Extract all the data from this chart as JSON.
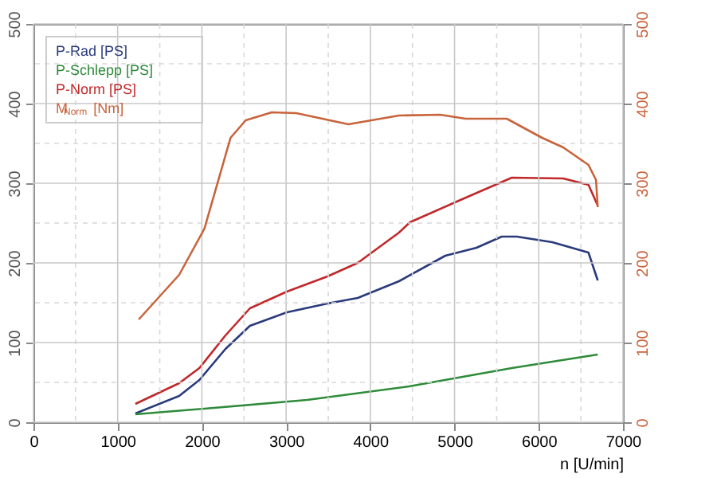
{
  "chart_data": {
    "type": "line",
    "xlabel": "n [U/min]",
    "xlim": [
      0,
      7000
    ],
    "xticks": [
      0,
      {
        "value": 500,
        "label": null
      },
      1000,
      {
        "value": 1500,
        "label": null
      },
      2000,
      {
        "value": 2500,
        "label": null
      },
      3000,
      {
        "value": 3500,
        "label": null
      },
      4000,
      {
        "value": 4500,
        "label": null
      },
      5000,
      {
        "value": 5500,
        "label": null
      },
      6000,
      {
        "value": 6500,
        "label": null
      },
      7000
    ],
    "ylim": [
      0,
      500
    ],
    "yticks": [
      0,
      {
        "value": 50,
        "label": null
      },
      100,
      {
        "value": 150,
        "label": null
      },
      200,
      {
        "value": 250,
        "label": null
      },
      300,
      {
        "value": 350,
        "label": null
      },
      400,
      {
        "value": 450,
        "label": null
      },
      500
    ],
    "y2lim": [
      0,
      500
    ],
    "y2ticks": [
      0,
      100,
      200,
      300,
      400,
      500
    ],
    "grid": true,
    "legend": "top left",
    "marker": "none",
    "line_style": "solid",
    "series": [
      {
        "name": "P-Rad [PS]",
        "color": "#2a3a7a",
        "x": [
          1210,
          1730,
          1970,
          2280,
          2570,
          3010,
          3490,
          3850,
          4340,
          4890,
          5260,
          5560,
          5740,
          6160,
          6590,
          6700
        ],
        "values": [
          11,
          33,
          53,
          92,
          121,
          138,
          149,
          156,
          177,
          209,
          219,
          233,
          233,
          226,
          213,
          178
        ]
      },
      {
        "name": "P-Schlepp [PS]",
        "color": "#2e8b3a",
        "x": [
          1210,
          2030,
          3250,
          4460,
          5680,
          6700
        ],
        "values": [
          10,
          17,
          28,
          45,
          68,
          85
        ]
      },
      {
        "name": "P-Norm [PS]",
        "color": "#c0282a",
        "x": [
          1210,
          1730,
          1970,
          2280,
          2570,
          3010,
          3490,
          3850,
          4340,
          4470,
          5070,
          5680,
          6290,
          6590,
          6700
        ],
        "values": [
          23,
          49,
          68,
          109,
          143,
          164,
          183,
          200,
          238,
          251,
          279,
          307,
          306,
          298,
          272
        ]
      },
      {
        "name": "M$_{Norm}$ [Nm]",
        "color": "#c8643c",
        "axis": "y2",
        "x": [
          1250,
          1730,
          2030,
          2340,
          2520,
          2830,
          3120,
          3740,
          4340,
          4830,
          5130,
          5620,
          6040,
          6290,
          6590,
          6680,
          6700
        ],
        "values": [
          129,
          185,
          243,
          357,
          379,
          389,
          388,
          374,
          385,
          386,
          381,
          381,
          357,
          345,
          323,
          304,
          270
        ]
      }
    ]
  }
}
